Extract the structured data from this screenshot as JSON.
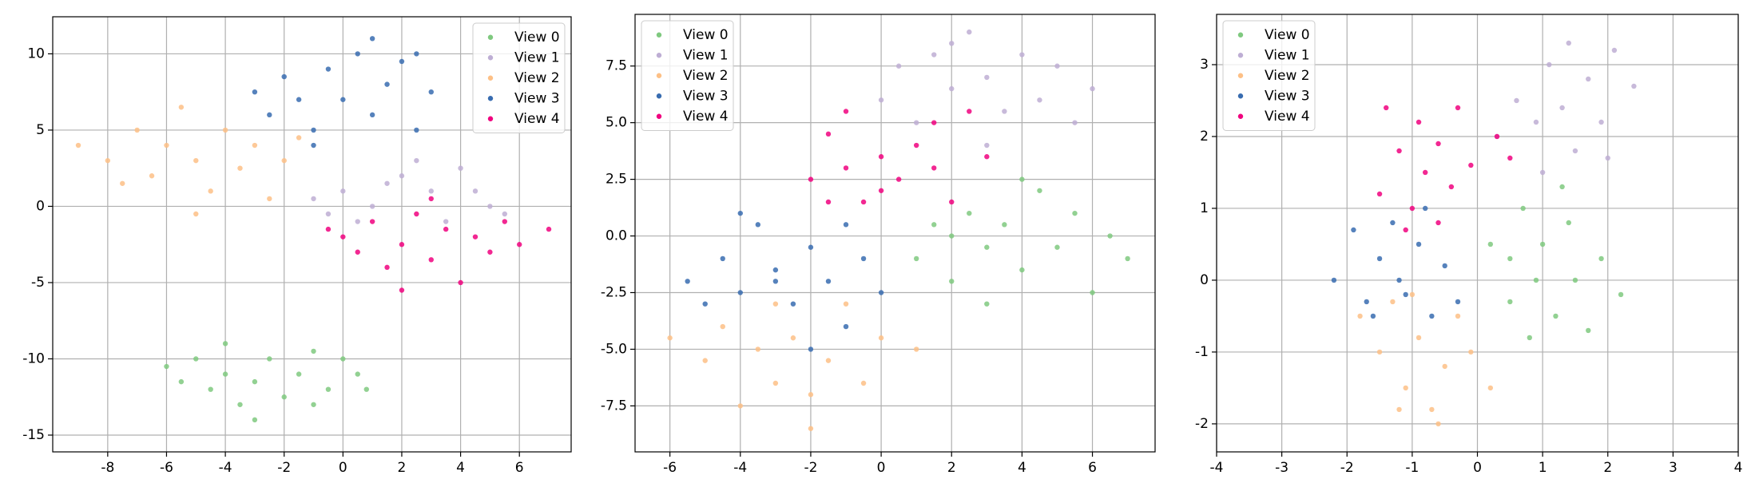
{
  "chart_data": [
    {
      "type": "scatter",
      "xlim": [
        -9.87,
        7.76
      ],
      "ylim": [
        -16.1,
        12.43
      ],
      "xticks": [
        -8,
        -6,
        -4,
        -2,
        0,
        2,
        4,
        6
      ],
      "yticks": [
        -15,
        -10,
        -5,
        0,
        5,
        10
      ],
      "grid": true,
      "legend": "upper right",
      "series": [
        {
          "name": "View 0",
          "color": "#7fc97f",
          "x": [
            -6,
            -5.5,
            -5,
            -4.5,
            -4,
            -3.5,
            -3,
            -2.5,
            -2,
            -1.5,
            -1,
            -0.5,
            0,
            0.5,
            -3,
            -4,
            -1,
            0.8
          ],
          "y": [
            -10.5,
            -11.5,
            -10,
            -12,
            -11,
            -13,
            -11.5,
            -10,
            -12.5,
            -11,
            -13,
            -12,
            -10,
            -11,
            -14,
            -9,
            -9.5,
            -12
          ]
        },
        {
          "name": "View 1",
          "color": "#beaed4",
          "x": [
            -1,
            0,
            1,
            2,
            3,
            4,
            5,
            3.5,
            1.5,
            -0.5,
            2.5,
            4.5,
            5.5,
            0.5
          ],
          "y": [
            0.5,
            1,
            0,
            2,
            1,
            2.5,
            0,
            -1,
            1.5,
            -0.5,
            3,
            1,
            -0.5,
            -1
          ]
        },
        {
          "name": "View 2",
          "color": "#fdc086",
          "x": [
            -9,
            -8,
            -7,
            -6.5,
            -6,
            -5.5,
            -5,
            -4.5,
            -4,
            -3.5,
            -3,
            -2.5,
            -2,
            -1.5,
            -5,
            -7.5
          ],
          "y": [
            4,
            3,
            5,
            2,
            4,
            6.5,
            3,
            1,
            5,
            2.5,
            4,
            0.5,
            3,
            4.5,
            -0.5,
            1.5
          ]
        },
        {
          "name": "View 3",
          "color": "#386cb0",
          "x": [
            -3,
            -2.5,
            -2,
            -1.5,
            -1,
            -0.5,
            0,
            0.5,
            1,
            1.5,
            2,
            2.5,
            3,
            -1,
            1,
            2.5
          ],
          "y": [
            7.5,
            6,
            8.5,
            7,
            5,
            9,
            7,
            10,
            6,
            8,
            9.5,
            10,
            7.5,
            4,
            11,
            5
          ]
        },
        {
          "name": "View 4",
          "color": "#f0027f",
          "x": [
            -0.5,
            0,
            0.5,
            1,
            1.5,
            2,
            2.5,
            3,
            3.5,
            4,
            4.5,
            5,
            5.5,
            6,
            7,
            2,
            3
          ],
          "y": [
            -1.5,
            -2,
            -3,
            -1,
            -4,
            -2.5,
            -0.5,
            -3.5,
            -1.5,
            -5,
            -2,
            -3,
            -1,
            -2.5,
            -1.5,
            -5.5,
            0.5
          ]
        }
      ]
    },
    {
      "type": "scatter",
      "xlim": [
        -6.99,
        7.78
      ],
      "ylim": [
        -9.53,
        9.78
      ],
      "xticks": [
        -6,
        -4,
        -2,
        0,
        2,
        4,
        6
      ],
      "yticks": [
        {
          "value": -7.5,
          "label": "-7.5"
        },
        {
          "value": -5,
          "label": "-5.0"
        },
        {
          "value": -2.5,
          "label": "-2.5"
        },
        {
          "value": 0,
          "label": "0.0"
        },
        {
          "value": 2.5,
          "label": "2.5"
        },
        {
          "value": 5,
          "label": "5.0"
        },
        {
          "value": 7.5,
          "label": "7.5"
        }
      ],
      "grid": true,
      "legend": "upper left",
      "series": [
        {
          "name": "View 0",
          "color": "#7fc97f",
          "x": [
            1,
            1.5,
            2,
            2.5,
            3,
            3.5,
            4,
            4.5,
            5,
            5.5,
            6,
            6.5,
            7,
            3,
            4,
            2
          ],
          "y": [
            -1,
            0.5,
            -2,
            1,
            -0.5,
            0.5,
            -1.5,
            2,
            -0.5,
            1,
            -2.5,
            0,
            -1,
            -3,
            2.5,
            0
          ]
        },
        {
          "name": "View 1",
          "color": "#beaed4",
          "x": [
            0,
            0.5,
            1,
            1.5,
            2,
            2.5,
            3,
            3.5,
            4,
            4.5,
            5,
            5.5,
            6,
            2,
            3
          ],
          "y": [
            6,
            7.5,
            5,
            8,
            6.5,
            9,
            7,
            5.5,
            8,
            6,
            7.5,
            5,
            6.5,
            8.5,
            4
          ]
        },
        {
          "name": "View 2",
          "color": "#fdc086",
          "x": [
            -6,
            -5,
            -4.5,
            -4,
            -3.5,
            -3,
            -2.5,
            -2,
            -1.5,
            -1,
            -0.5,
            0,
            1,
            -2,
            -3
          ],
          "y": [
            -4.5,
            -5.5,
            -4,
            -7.5,
            -5,
            -6.5,
            -4.5,
            -7,
            -5.5,
            -3,
            -6.5,
            -4.5,
            -5,
            -8.5,
            -3
          ]
        },
        {
          "name": "View 3",
          "color": "#386cb0",
          "x": [
            -5.5,
            -5,
            -4.5,
            -4,
            -3.5,
            -3,
            -2.5,
            -2,
            -1.5,
            -1,
            -0.5,
            0,
            -2,
            -3,
            -1,
            -4
          ],
          "y": [
            -2,
            -3,
            -1,
            -2.5,
            0.5,
            -1.5,
            -3,
            -0.5,
            -2,
            -4,
            -1,
            -2.5,
            -5,
            -2,
            0.5,
            1
          ]
        },
        {
          "name": "View 4",
          "color": "#f0027f",
          "x": [
            -2,
            -1.5,
            -1,
            -0.5,
            0,
            0.5,
            1,
            1.5,
            2,
            2.5,
            3,
            -1,
            0,
            1.5,
            -1.5
          ],
          "y": [
            2.5,
            4.5,
            3,
            1.5,
            3.5,
            2.5,
            4,
            3,
            1.5,
            5.5,
            3.5,
            5.5,
            2,
            5,
            1.5
          ]
        }
      ]
    },
    {
      "type": "scatter",
      "xlim": [
        -4,
        4
      ],
      "ylim": [
        -2.39,
        3.7
      ],
      "xticks": [
        -4,
        -3,
        -2,
        -1,
        0,
        1,
        2,
        3,
        4
      ],
      "yticks": [
        -2,
        -1,
        0,
        1,
        2,
        3
      ],
      "grid": true,
      "legend": "upper left",
      "series": [
        {
          "name": "View 0",
          "color": "#7fc97f",
          "x": [
            0.2,
            0.5,
            0.7,
            0.9,
            1,
            1.2,
            1.4,
            1.5,
            1.7,
            1.9,
            2.2,
            0.8,
            1.3,
            0.5
          ],
          "y": [
            0.5,
            -0.3,
            1,
            0,
            0.5,
            -0.5,
            0.8,
            0,
            -0.7,
            0.3,
            -0.2,
            -0.8,
            1.3,
            0.3
          ]
        },
        {
          "name": "View 1",
          "color": "#beaed4",
          "x": [
            0.3,
            0.6,
            0.9,
            1.1,
            1.3,
            1.5,
            1.7,
            1.9,
            2.1,
            2.4,
            1.4,
            1,
            2
          ],
          "y": [
            2,
            2.5,
            2.2,
            3,
            2.4,
            1.8,
            2.8,
            2.2,
            3.2,
            2.7,
            3.3,
            1.5,
            1.7
          ]
        },
        {
          "name": "View 2",
          "color": "#fdc086",
          "x": [
            -1.8,
            -1.5,
            -1.3,
            -1.1,
            -0.9,
            -0.7,
            -0.5,
            -0.3,
            -0.1,
            0.2,
            -1,
            -0.6,
            -1.2
          ],
          "y": [
            -0.5,
            -1,
            -0.3,
            -1.5,
            -0.8,
            -1.8,
            -1.2,
            -0.5,
            -1,
            -1.5,
            -0.2,
            -2,
            -1.8
          ]
        },
        {
          "name": "View 3",
          "color": "#386cb0",
          "x": [
            -2.2,
            -1.9,
            -1.7,
            -1.5,
            -1.3,
            -1.1,
            -0.9,
            -0.7,
            -0.5,
            -0.3,
            -1.2,
            -0.8,
            -1.6
          ],
          "y": [
            0,
            0.7,
            -0.3,
            0.3,
            0.8,
            -0.2,
            0.5,
            -0.5,
            0.2,
            -0.3,
            0,
            1,
            -0.5
          ]
        },
        {
          "name": "View 4",
          "color": "#f0027f",
          "x": [
            -1.5,
            -1.4,
            -1.2,
            -1,
            -0.9,
            -0.8,
            -0.6,
            -0.4,
            -0.3,
            -0.1,
            0.3,
            0.5,
            -1.1,
            -0.6
          ],
          "y": [
            1.2,
            2.4,
            1.8,
            1,
            2.2,
            1.5,
            1.9,
            1.3,
            2.4,
            1.6,
            2,
            1.7,
            0.7,
            0.8
          ]
        }
      ]
    }
  ]
}
